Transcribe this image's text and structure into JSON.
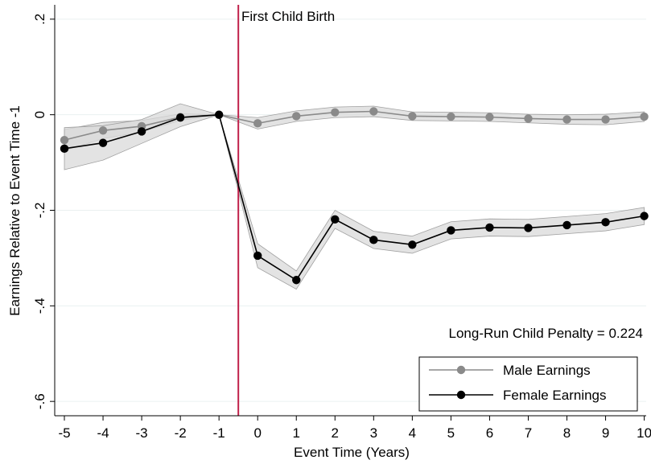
{
  "chart_data": {
    "type": "line",
    "title": "",
    "xlabel": "Event Time (Years)",
    "ylabel": "Earnings Relative to Event Time -1",
    "x": [
      -5,
      -4,
      -3,
      -2,
      -1,
      0,
      1,
      2,
      3,
      4,
      5,
      6,
      7,
      8,
      9,
      10
    ],
    "xticks": [
      "-5",
      "-4",
      "-3",
      "-2",
      "-1",
      "0",
      "1",
      "2",
      "3",
      "4",
      "5",
      "6",
      "7",
      "8",
      "9",
      "10"
    ],
    "yticks": [
      {
        "value": 0.2,
        "label": ".2"
      },
      {
        "value": 0,
        "label": "0"
      },
      {
        "value": -0.2,
        "label": "-.2"
      },
      {
        "value": -0.4,
        "label": "-.4"
      },
      {
        "value": -0.6,
        "label": "-.6"
      }
    ],
    "xlim": [
      -5.25,
      10.05
    ],
    "ylim": [
      -0.63,
      0.23
    ],
    "grid": true,
    "vline": {
      "x": -0.5,
      "label": "First Child Birth",
      "color": "#c0204a"
    },
    "annotation": "Long-Run Child Penalty = 0.224",
    "legend_position": "bottom-right",
    "series": [
      {
        "name": "Male Earnings",
        "color": "#8a8a8a",
        "values": [
          -0.053,
          -0.033,
          -0.024,
          -0.005,
          0,
          -0.018,
          -0.003,
          0.005,
          0.007,
          -0.003,
          -0.004,
          -0.005,
          -0.008,
          -0.01,
          -0.01,
          -0.004
        ],
        "ci_lower": [
          -0.075,
          -0.05,
          -0.036,
          -0.012,
          0,
          -0.03,
          -0.014,
          -0.006,
          -0.004,
          -0.012,
          -0.013,
          -0.014,
          -0.017,
          -0.02,
          -0.021,
          -0.014
        ],
        "ci_upper": [
          -0.031,
          -0.016,
          -0.012,
          0.002,
          0,
          -0.006,
          0.008,
          0.016,
          0.018,
          0.006,
          0.005,
          0.004,
          0.001,
          0.0,
          0.001,
          0.006
        ]
      },
      {
        "name": "Female Earnings",
        "color": "#000000",
        "values": [
          -0.071,
          -0.059,
          -0.035,
          -0.006,
          0,
          -0.295,
          -0.346,
          -0.219,
          -0.262,
          -0.272,
          -0.242,
          -0.236,
          -0.237,
          -0.231,
          -0.225,
          -0.212
        ],
        "ci_lower": [
          -0.115,
          -0.095,
          -0.06,
          -0.025,
          0,
          -0.32,
          -0.365,
          -0.238,
          -0.28,
          -0.29,
          -0.26,
          -0.254,
          -0.255,
          -0.249,
          -0.243,
          -0.23
        ],
        "ci_upper": [
          -0.027,
          -0.023,
          -0.01,
          0.023,
          0,
          -0.27,
          -0.327,
          -0.2,
          -0.244,
          -0.254,
          -0.224,
          -0.218,
          -0.219,
          -0.213,
          -0.207,
          -0.194
        ]
      }
    ]
  }
}
